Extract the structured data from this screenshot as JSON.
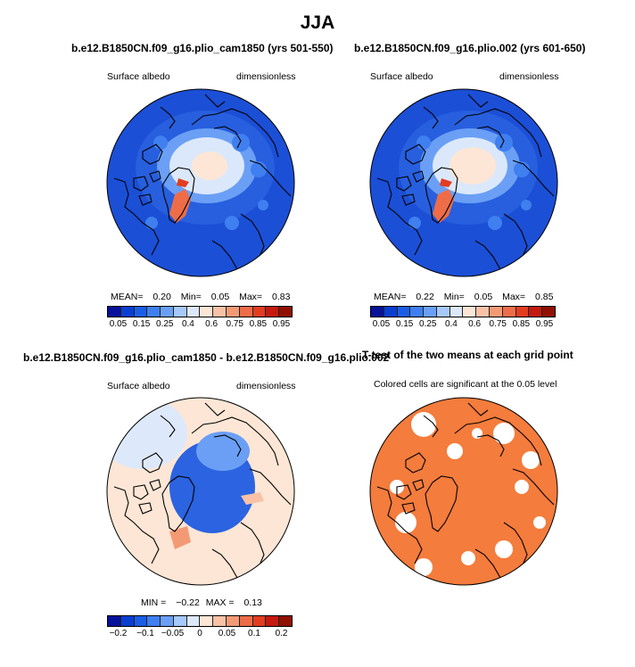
{
  "title": "JJA",
  "panels": [
    {
      "title": "b.e12.B1850CN.f09_g16.plio_cam1850 (yrs 501-550)",
      "left_label": "Surface albedo",
      "right_label": "dimensionless",
      "stats": {
        "mean_label": "MEAN=",
        "mean": "0.20",
        "min_label": "Min=",
        "min": "0.05",
        "max_label": "Max=",
        "max": "0.83"
      }
    },
    {
      "title": "b.e12.B1850CN.f09_g16.plio.002 (yrs 601-650)",
      "left_label": "Surface albedo",
      "right_label": "dimensionless",
      "stats": {
        "mean_label": "MEAN=",
        "mean": "0.22",
        "min_label": "Min=",
        "min": "0.05",
        "max_label": "Max=",
        "max": "0.85"
      }
    },
    {
      "title": "b.e12.B1850CN.f09_g16.plio_cam1850 - b.e12.B1850CN.f09_g16.plio.002",
      "left_label": "Surface albedo",
      "right_label": "dimensionless",
      "stats": {
        "min_label": "MIN =",
        "min": "−0.22",
        "max_label": "MAX =",
        "max": "0.13"
      }
    },
    {
      "title": "T-test of the two means at each grid point",
      "left_label": "Colored cells are significant at the 0.05 level",
      "right_label": ""
    }
  ],
  "colorbars": {
    "albedo": {
      "labels": [
        "0.05",
        "0.15",
        "0.25",
        "0.4",
        "0.6",
        "0.75",
        "0.85",
        "0.95"
      ],
      "colors": [
        "#08119a",
        "#0a3ed1",
        "#1b5ee6",
        "#3f7ff0",
        "#6a9ff5",
        "#a6c8fa",
        "#dde9fb",
        "#fde6d5",
        "#f9c2a6",
        "#f39a75",
        "#ee6d48",
        "#e33d20",
        "#c41a10",
        "#901000"
      ]
    },
    "diff": {
      "labels": [
        "−0.2",
        "−0.1",
        "−0.05",
        "0",
        "0.05",
        "0.1",
        "0.2"
      ],
      "colors": [
        "#08119a",
        "#0a3ed1",
        "#1b5ee6",
        "#3f7ff0",
        "#6a9ff5",
        "#a6c8fa",
        "#dde9fb",
        "#fde6d5",
        "#f9c2a6",
        "#f39a75",
        "#ee6d48",
        "#e33d20",
        "#c41a10",
        "#901000"
      ]
    }
  },
  "chart_data": [
    {
      "type": "heatmap",
      "title": "b.e12.B1850CN.f09_g16.plio_cam1850 (yrs 501-550)",
      "variable": "Surface albedo",
      "units": "dimensionless",
      "projection": "north polar stereographic",
      "mean": 0.2,
      "min": 0.05,
      "max": 0.83,
      "contour_levels": [
        0.05,
        0.1,
        0.15,
        0.2,
        0.25,
        0.3,
        0.4,
        0.5,
        0.6,
        0.7,
        0.75,
        0.8,
        0.85,
        0.9,
        0.95
      ]
    },
    {
      "type": "heatmap",
      "title": "b.e12.B1850CN.f09_g16.plio.002 (yrs 601-650)",
      "variable": "Surface albedo",
      "units": "dimensionless",
      "projection": "north polar stereographic",
      "mean": 0.22,
      "min": 0.05,
      "max": 0.85,
      "contour_levels": [
        0.05,
        0.1,
        0.15,
        0.2,
        0.25,
        0.3,
        0.4,
        0.5,
        0.6,
        0.7,
        0.75,
        0.8,
        0.85,
        0.9,
        0.95
      ]
    },
    {
      "type": "heatmap",
      "title": "b.e12.B1850CN.f09_g16.plio_cam1850 - b.e12.B1850CN.f09_g16.plio.002",
      "variable": "Surface albedo",
      "units": "dimensionless",
      "projection": "north polar stereographic",
      "min": -0.22,
      "max": 0.13,
      "contour_levels": [
        -0.2,
        -0.15,
        -0.1,
        -0.075,
        -0.05,
        -0.025,
        0,
        0.025,
        0.05,
        0.075,
        0.1,
        0.15,
        0.2
      ]
    },
    {
      "type": "heatmap",
      "title": "T-test of the two means at each grid point",
      "variable": "significance",
      "significance_level": 0.05,
      "fill_color": "#f47c3c"
    }
  ],
  "map_colors": {
    "ocean_low": "#1b4fd6",
    "ocean_mid": "#2b63e0",
    "ice": "#dbe8fb",
    "ice_core": "#fde6d5",
    "greenland": "#ee6d48",
    "diff_pos": "#fde6d5",
    "diff_neg": "#2b63e0",
    "sig": "#f47c3c",
    "coast": "#000000"
  }
}
